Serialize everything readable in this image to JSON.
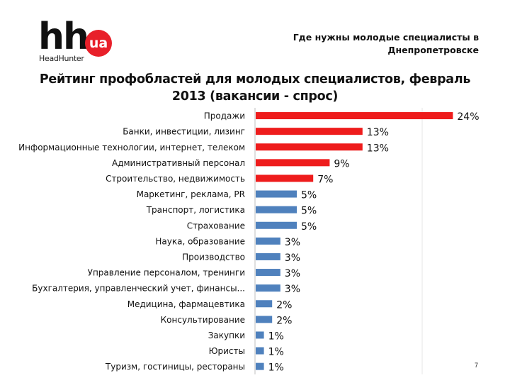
{
  "header": {
    "logo_main": "hh",
    "logo_badge": "ua",
    "logo_sub": "HeadHunter",
    "note": "Где нужны молодые специалисты в Днепропетровске"
  },
  "page_number": "7",
  "colors": {
    "highlight": "#ee1c1c",
    "regular": "#4f81bd",
    "logo_accent": "#e8202a"
  },
  "chart_data": {
    "type": "bar",
    "orientation": "horizontal",
    "title": "Рейтинг профобластей для молодых специалистов, февраль 2013 (вакансии - спрос)",
    "xlim": [
      0,
      25
    ],
    "grid": false,
    "legend": "none",
    "categories": [
      "Продажи",
      "Банки, инвестиции, лизинг",
      "Информационные технологии, интернет, телеком",
      "Административный персонал",
      "Строительство, недвижимость",
      "Маркетинг, реклама, PR",
      "Транспорт, логистика",
      "Страхование",
      "Наука, образование",
      "Производство",
      "Управление персоналом, тренинги",
      "Бухгалтерия, управленческий учет, финансы...",
      "Медицина, фармацевтика",
      "Консультирование",
      "Закупки",
      "Юристы",
      "Туризм, гостиницы, рестораны"
    ],
    "values": [
      24,
      13,
      13,
      9,
      7,
      5,
      5,
      5,
      3,
      3,
      3,
      3,
      2,
      2,
      1,
      1,
      1
    ],
    "value_labels": [
      "24%",
      "13%",
      "13%",
      "9%",
      "7%",
      "5%",
      "5%",
      "5%",
      "3%",
      "3%",
      "3%",
      "3%",
      "2%",
      "2%",
      "1%",
      "1%",
      "1%"
    ],
    "highlighted_count": 5
  }
}
